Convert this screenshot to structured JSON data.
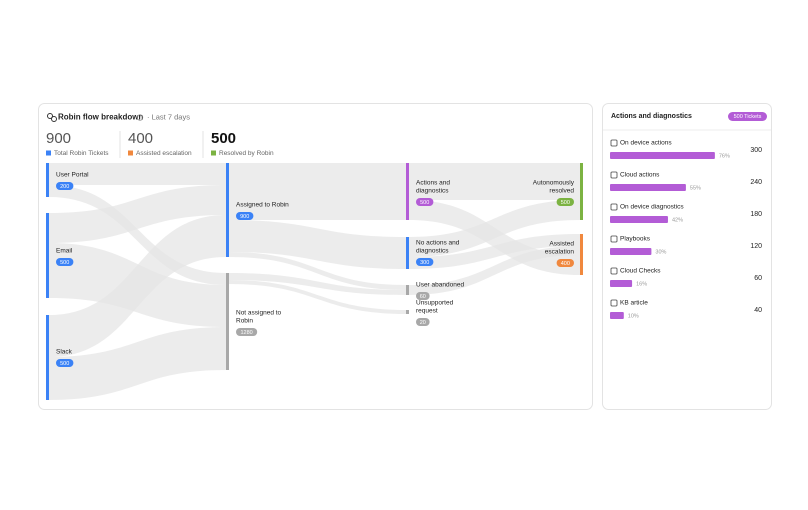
{
  "flow_panel": {
    "title": "Robin flow breakdown",
    "period": "· Last 7 days",
    "stats": [
      {
        "value": 900,
        "label": "Total Robin Tickets",
        "color": "#3b82f6"
      },
      {
        "value": 400,
        "label": "Assisted escalation",
        "color": "#f0883e"
      },
      {
        "value": 500,
        "label": "Resolved by Robin",
        "color": "#7cb342"
      }
    ],
    "nodes": [
      {
        "label": [
          "User Portal"
        ],
        "value": 200,
        "color": "#3b82f6"
      },
      {
        "label": [
          "Email"
        ],
        "value": 500,
        "color": "#3b82f6"
      },
      {
        "label": [
          "Slack"
        ],
        "value": 500,
        "color": "#3b82f6"
      },
      {
        "label": [
          "Assigned to Robin"
        ],
        "value": 900,
        "color": "#3b82f6"
      },
      {
        "label": [
          "Not assigned to",
          "Robin"
        ],
        "value": 1280,
        "color": "#a8a8a8"
      },
      {
        "label": [
          "Actions and",
          "diagnostics"
        ],
        "value": 500,
        "color": "#b35cd6"
      },
      {
        "label": [
          "No actions and",
          "diagnostics"
        ],
        "value": 300,
        "color": "#3b82f6"
      },
      {
        "label": [
          "User abandoned"
        ],
        "value": 60,
        "color": "#a8a8a8"
      },
      {
        "label": [
          "Unsupported",
          "request"
        ],
        "value": 20,
        "color": "#a8a8a8"
      },
      {
        "label": [
          "Autonomously",
          "resolved"
        ],
        "value": 500,
        "color": "#7cb342"
      },
      {
        "label": [
          "Assisted",
          "escalation"
        ],
        "value": 400,
        "color": "#f0883e"
      }
    ]
  },
  "actions_panel": {
    "title": "Actions and diagnostics",
    "badge": "500 Tickets",
    "items": [
      {
        "label": "On device actions",
        "count": 300,
        "percent": 76,
        "percent_label": "76%"
      },
      {
        "label": "Cloud actions",
        "count": 240,
        "percent": 55,
        "percent_label": "55%"
      },
      {
        "label": "On device diagnostics",
        "count": 180,
        "percent": 42,
        "percent_label": "42%"
      },
      {
        "label": "Playbooks",
        "count": 120,
        "percent": 30,
        "percent_label": "30%"
      },
      {
        "label": "Cloud Checks",
        "count": 60,
        "percent": 16,
        "percent_label": "16%"
      },
      {
        "label": "KB article",
        "count": 40,
        "percent": 10,
        "percent_label": "10%"
      }
    ]
  }
}
